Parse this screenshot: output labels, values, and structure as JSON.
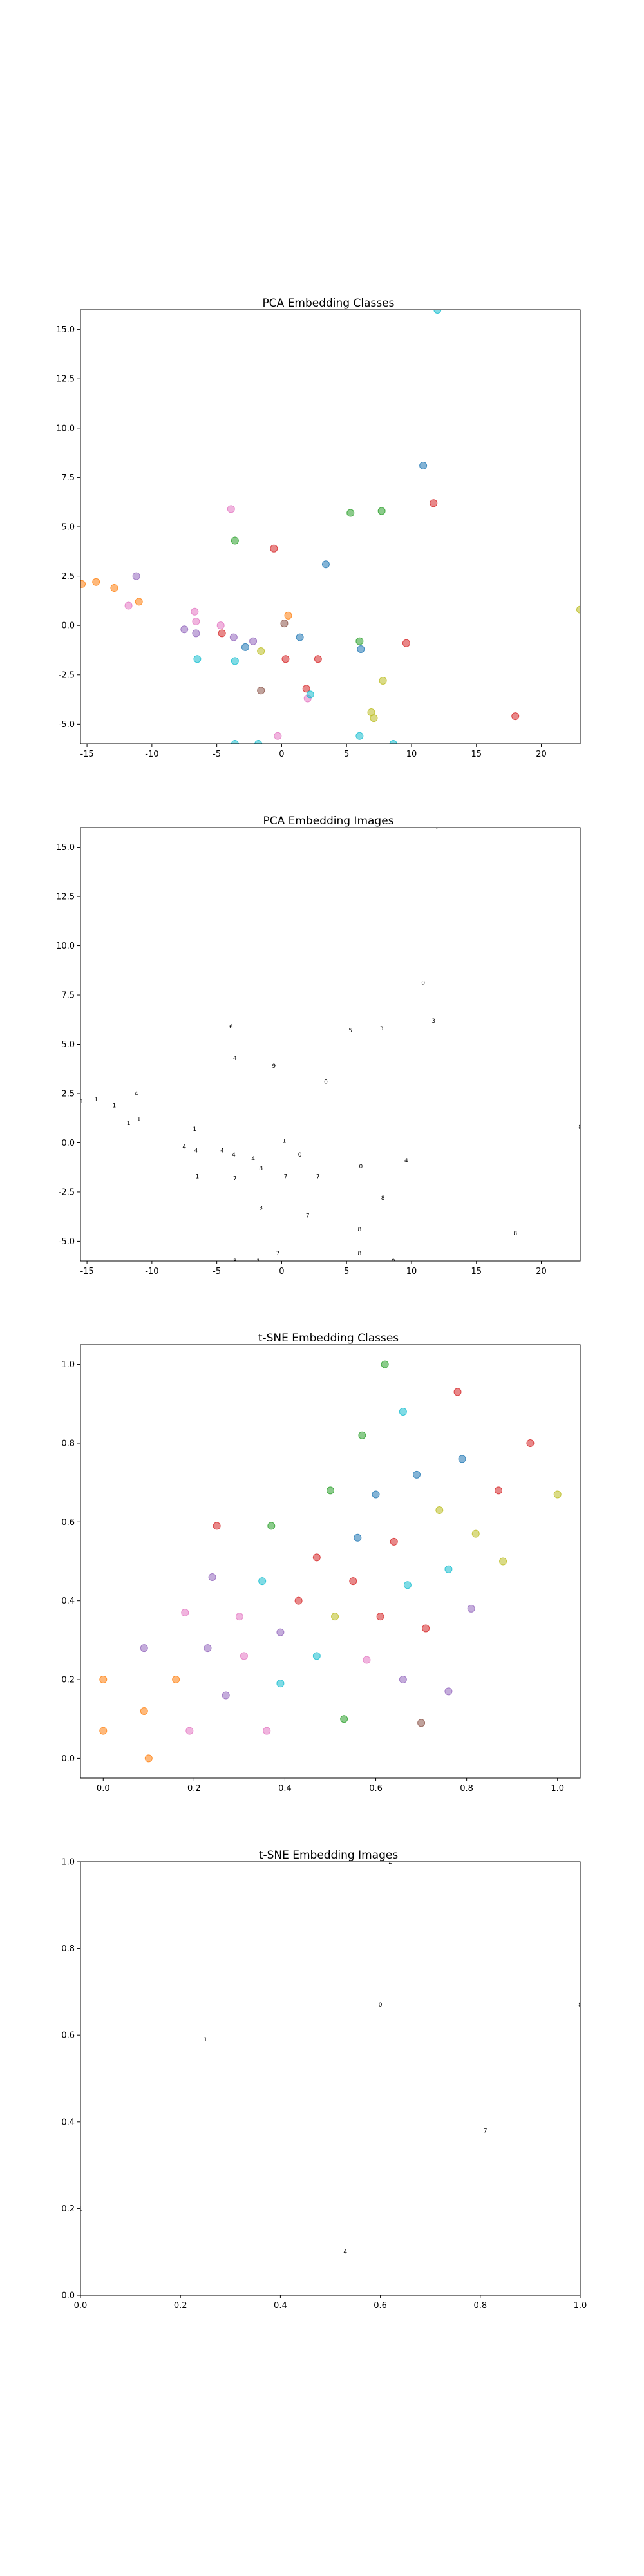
{
  "chart_data": [
    {
      "type": "scatter",
      "title": "PCA Embedding Classes",
      "xlabel": "",
      "ylabel": "",
      "xlim": [
        -15.5,
        23
      ],
      "ylim": [
        -6,
        16
      ],
      "xticks": [
        -15,
        -10,
        -5,
        0,
        5,
        10,
        15,
        20
      ],
      "yticks": [
        -5.0,
        -2.5,
        0.0,
        2.5,
        5.0,
        7.5,
        10.0,
        12.5,
        15.0
      ],
      "grid": false,
      "points": [
        {
          "x": -15.4,
          "y": 2.1,
          "color": "#ff7f0e"
        },
        {
          "x": -14.3,
          "y": 2.2,
          "color": "#ff7f0e"
        },
        {
          "x": -12.9,
          "y": 1.9,
          "color": "#ff7f0e"
        },
        {
          "x": -11.8,
          "y": 1.0,
          "color": "#e377c2"
        },
        {
          "x": -11.2,
          "y": 2.5,
          "color": "#9467bd"
        },
        {
          "x": -11.0,
          "y": 1.2,
          "color": "#ff7f0e"
        },
        {
          "x": -7.5,
          "y": -0.2,
          "color": "#9467bd"
        },
        {
          "x": -6.7,
          "y": 0.7,
          "color": "#e377c2"
        },
        {
          "x": -6.6,
          "y": 0.2,
          "color": "#e377c2"
        },
        {
          "x": -6.6,
          "y": -0.4,
          "color": "#9467bd"
        },
        {
          "x": -6.5,
          "y": -1.7,
          "color": "#17becf"
        },
        {
          "x": -4.7,
          "y": 0.0,
          "color": "#e377c2"
        },
        {
          "x": -4.6,
          "y": -0.4,
          "color": "#d62728"
        },
        {
          "x": -3.9,
          "y": 5.9,
          "color": "#e377c2"
        },
        {
          "x": -3.7,
          "y": -0.6,
          "color": "#9467bd"
        },
        {
          "x": -3.6,
          "y": 4.3,
          "color": "#2ca02c"
        },
        {
          "x": -3.6,
          "y": -1.8,
          "color": "#17becf"
        },
        {
          "x": -2.8,
          "y": -1.1,
          "color": "#1f77b4"
        },
        {
          "x": -2.2,
          "y": -0.8,
          "color": "#9467bd"
        },
        {
          "x": -1.6,
          "y": -3.3,
          "color": "#8c564b"
        },
        {
          "x": -1.6,
          "y": -1.3,
          "color": "#bcbd22"
        },
        {
          "x": -0.6,
          "y": 3.9,
          "color": "#d62728"
        },
        {
          "x": 0.2,
          "y": 0.1,
          "color": "#8c564b"
        },
        {
          "x": 0.3,
          "y": -1.7,
          "color": "#d62728"
        },
        {
          "x": 0.5,
          "y": 0.5,
          "color": "#ff7f0e"
        },
        {
          "x": 1.4,
          "y": -0.6,
          "color": "#1f77b4"
        },
        {
          "x": 1.9,
          "y": -3.2,
          "color": "#d62728"
        },
        {
          "x": 2.0,
          "y": -3.7,
          "color": "#e377c2"
        },
        {
          "x": 2.2,
          "y": -3.5,
          "color": "#17becf"
        },
        {
          "x": 2.8,
          "y": -1.7,
          "color": "#d62728"
        },
        {
          "x": 3.4,
          "y": 3.1,
          "color": "#1f77b4"
        },
        {
          "x": 5.3,
          "y": 5.7,
          "color": "#2ca02c"
        },
        {
          "x": 6.0,
          "y": -0.8,
          "color": "#2ca02c"
        },
        {
          "x": 6.1,
          "y": -1.2,
          "color": "#1f77b4"
        },
        {
          "x": 6.9,
          "y": -4.4,
          "color": "#bcbd22"
        },
        {
          "x": 7.1,
          "y": -4.7,
          "color": "#bcbd22"
        },
        {
          "x": 7.7,
          "y": 5.8,
          "color": "#2ca02c"
        },
        {
          "x": 7.8,
          "y": -2.8,
          "color": "#bcbd22"
        },
        {
          "x": 9.6,
          "y": -0.9,
          "color": "#d62728"
        },
        {
          "x": 10.9,
          "y": 8.1,
          "color": "#1f77b4"
        },
        {
          "x": 11.7,
          "y": 6.2,
          "color": "#d62728"
        },
        {
          "x": 18.0,
          "y": -4.6,
          "color": "#d62728"
        },
        {
          "x": 23.0,
          "y": 0.8,
          "color": "#bcbd22"
        },
        {
          "x": -3.6,
          "y": -6.0,
          "color": "#17becf"
        },
        {
          "x": -1.8,
          "y": -6.0,
          "color": "#17becf"
        },
        {
          "x": -0.3,
          "y": -5.6,
          "color": "#e377c2"
        },
        {
          "x": 6.0,
          "y": -5.6,
          "color": "#17becf"
        },
        {
          "x": 8.6,
          "y": -6.0,
          "color": "#17becf"
        },
        {
          "x": 12.0,
          "y": 16.0,
          "color": "#17becf"
        }
      ]
    },
    {
      "type": "scatter",
      "title": "PCA Embedding Images",
      "xlabel": "",
      "ylabel": "",
      "xlim": [
        -15.5,
        23
      ],
      "ylim": [
        -6,
        16
      ],
      "xticks": [
        -15,
        -10,
        -5,
        0,
        5,
        10,
        15,
        20
      ],
      "yticks": [
        -5.0,
        -2.5,
        0.0,
        2.5,
        5.0,
        7.5,
        10.0,
        12.5,
        15.0
      ],
      "grid": false,
      "points": [
        {
          "x": -15.4,
          "y": 2.1,
          "label": "1"
        },
        {
          "x": -14.3,
          "y": 2.2,
          "label": "1"
        },
        {
          "x": -12.9,
          "y": 1.9,
          "label": "1"
        },
        {
          "x": -11.8,
          "y": 1.0,
          "label": "1"
        },
        {
          "x": -11.2,
          "y": 2.5,
          "label": "4"
        },
        {
          "x": -11.0,
          "y": 1.2,
          "label": "1"
        },
        {
          "x": -7.5,
          "y": -0.2,
          "label": "4"
        },
        {
          "x": -6.7,
          "y": 0.7,
          "label": "1"
        },
        {
          "x": -6.6,
          "y": -0.4,
          "label": "4"
        },
        {
          "x": -6.5,
          "y": -1.7,
          "label": "1"
        },
        {
          "x": -4.6,
          "y": -0.4,
          "label": "4"
        },
        {
          "x": -3.9,
          "y": 5.9,
          "label": "6"
        },
        {
          "x": -3.7,
          "y": -0.6,
          "label": "4"
        },
        {
          "x": -3.6,
          "y": 4.3,
          "label": "4"
        },
        {
          "x": -3.6,
          "y": -1.8,
          "label": "7"
        },
        {
          "x": -2.2,
          "y": -0.8,
          "label": "4"
        },
        {
          "x": -1.6,
          "y": -3.3,
          "label": "3"
        },
        {
          "x": -1.6,
          "y": -1.3,
          "label": "8"
        },
        {
          "x": -0.6,
          "y": 3.9,
          "label": "9"
        },
        {
          "x": 0.2,
          "y": 0.1,
          "label": "1"
        },
        {
          "x": 0.3,
          "y": -1.7,
          "label": "7"
        },
        {
          "x": 1.4,
          "y": -0.6,
          "label": "0"
        },
        {
          "x": 2.0,
          "y": -3.7,
          "label": "7"
        },
        {
          "x": 2.8,
          "y": -1.7,
          "label": "7"
        },
        {
          "x": 3.4,
          "y": 3.1,
          "label": "0"
        },
        {
          "x": 5.3,
          "y": 5.7,
          "label": "5"
        },
        {
          "x": 6.1,
          "y": -1.2,
          "label": "0"
        },
        {
          "x": 6.0,
          "y": -4.4,
          "label": "8"
        },
        {
          "x": 7.7,
          "y": 5.8,
          "label": "3"
        },
        {
          "x": 7.8,
          "y": -2.8,
          "label": "8"
        },
        {
          "x": 9.6,
          "y": -0.9,
          "label": "4"
        },
        {
          "x": 10.9,
          "y": 8.1,
          "label": "0"
        },
        {
          "x": 11.7,
          "y": 6.2,
          "label": "3"
        },
        {
          "x": 18.0,
          "y": -4.6,
          "label": "8"
        },
        {
          "x": 23.0,
          "y": 0.8,
          "label": "8"
        },
        {
          "x": -3.6,
          "y": -6.0,
          "label": "3"
        },
        {
          "x": -1.8,
          "y": -6.0,
          "label": "1"
        },
        {
          "x": -0.3,
          "y": -5.6,
          "label": "7"
        },
        {
          "x": 6.0,
          "y": -5.6,
          "label": "8"
        },
        {
          "x": 8.6,
          "y": -6.0,
          "label": "0"
        },
        {
          "x": 12.0,
          "y": 16.0,
          "label": "2"
        }
      ]
    },
    {
      "type": "scatter",
      "title": "t-SNE Embedding Classes",
      "xlabel": "",
      "ylabel": "",
      "xlim": [
        -0.05,
        1.05
      ],
      "ylim": [
        -0.05,
        1.05
      ],
      "xticks": [
        0.0,
        0.2,
        0.4,
        0.6,
        0.8,
        1.0
      ],
      "yticks": [
        0.0,
        0.2,
        0.4,
        0.6,
        0.8,
        1.0
      ],
      "grid": false,
      "points": [
        {
          "x": 0.0,
          "y": 0.07,
          "color": "#ff7f0e"
        },
        {
          "x": 0.0,
          "y": 0.2,
          "color": "#ff7f0e"
        },
        {
          "x": 0.09,
          "y": 0.12,
          "color": "#ff7f0e"
        },
        {
          "x": 0.1,
          "y": 0.0,
          "color": "#ff7f0e"
        },
        {
          "x": 0.09,
          "y": 0.28,
          "color": "#9467bd"
        },
        {
          "x": 0.16,
          "y": 0.2,
          "color": "#ff7f0e"
        },
        {
          "x": 0.19,
          "y": 0.07,
          "color": "#e377c2"
        },
        {
          "x": 0.18,
          "y": 0.37,
          "color": "#e377c2"
        },
        {
          "x": 0.23,
          "y": 0.28,
          "color": "#9467bd"
        },
        {
          "x": 0.24,
          "y": 0.46,
          "color": "#9467bd"
        },
        {
          "x": 0.25,
          "y": 0.59,
          "color": "#d62728"
        },
        {
          "x": 0.27,
          "y": 0.16,
          "color": "#9467bd"
        },
        {
          "x": 0.3,
          "y": 0.36,
          "color": "#e377c2"
        },
        {
          "x": 0.31,
          "y": 0.26,
          "color": "#e377c2"
        },
        {
          "x": 0.35,
          "y": 0.45,
          "color": "#17becf"
        },
        {
          "x": 0.36,
          "y": 0.07,
          "color": "#e377c2"
        },
        {
          "x": 0.37,
          "y": 0.59,
          "color": "#2ca02c"
        },
        {
          "x": 0.39,
          "y": 0.32,
          "color": "#9467bd"
        },
        {
          "x": 0.39,
          "y": 0.19,
          "color": "#17becf"
        },
        {
          "x": 0.43,
          "y": 0.4,
          "color": "#d62728"
        },
        {
          "x": 0.47,
          "y": 0.51,
          "color": "#d62728"
        },
        {
          "x": 0.47,
          "y": 0.26,
          "color": "#17becf"
        },
        {
          "x": 0.5,
          "y": 0.68,
          "color": "#2ca02c"
        },
        {
          "x": 0.51,
          "y": 0.36,
          "color": "#bcbd22"
        },
        {
          "x": 0.53,
          "y": 0.1,
          "color": "#2ca02c"
        },
        {
          "x": 0.55,
          "y": 0.45,
          "color": "#d62728"
        },
        {
          "x": 0.56,
          "y": 0.56,
          "color": "#1f77b4"
        },
        {
          "x": 0.57,
          "y": 0.82,
          "color": "#2ca02c"
        },
        {
          "x": 0.58,
          "y": 0.25,
          "color": "#e377c2"
        },
        {
          "x": 0.6,
          "y": 0.67,
          "color": "#1f77b4"
        },
        {
          "x": 0.61,
          "y": 0.36,
          "color": "#d62728"
        },
        {
          "x": 0.62,
          "y": 1.0,
          "color": "#2ca02c"
        },
        {
          "x": 0.64,
          "y": 0.55,
          "color": "#d62728"
        },
        {
          "x": 0.66,
          "y": 0.88,
          "color": "#17becf"
        },
        {
          "x": 0.66,
          "y": 0.2,
          "color": "#9467bd"
        },
        {
          "x": 0.67,
          "y": 0.44,
          "color": "#17becf"
        },
        {
          "x": 0.69,
          "y": 0.72,
          "color": "#1f77b4"
        },
        {
          "x": 0.7,
          "y": 0.09,
          "color": "#8c564b"
        },
        {
          "x": 0.71,
          "y": 0.33,
          "color": "#d62728"
        },
        {
          "x": 0.74,
          "y": 0.63,
          "color": "#bcbd22"
        },
        {
          "x": 0.76,
          "y": 0.48,
          "color": "#17becf"
        },
        {
          "x": 0.76,
          "y": 0.17,
          "color": "#9467bd"
        },
        {
          "x": 0.78,
          "y": 0.93,
          "color": "#d62728"
        },
        {
          "x": 0.79,
          "y": 0.76,
          "color": "#1f77b4"
        },
        {
          "x": 0.81,
          "y": 0.38,
          "color": "#9467bd"
        },
        {
          "x": 0.82,
          "y": 0.57,
          "color": "#bcbd22"
        },
        {
          "x": 0.87,
          "y": 0.68,
          "color": "#d62728"
        },
        {
          "x": 0.88,
          "y": 0.5,
          "color": "#bcbd22"
        },
        {
          "x": 0.94,
          "y": 0.8,
          "color": "#d62728"
        },
        {
          "x": 1.0,
          "y": 0.67,
          "color": "#bcbd22"
        }
      ]
    },
    {
      "type": "scatter",
      "title": "t-SNE Embedding Images",
      "xlabel": "",
      "ylabel": "",
      "xlim": [
        0.0,
        1.0
      ],
      "ylim": [
        0.0,
        1.0
      ],
      "xticks": [
        0.0,
        0.2,
        0.4,
        0.6,
        0.8,
        1.0
      ],
      "yticks": [
        0.0,
        0.2,
        0.4,
        0.6,
        0.8,
        1.0
      ],
      "grid": false,
      "points": [
        {
          "x": 0.0,
          "y": 0.2,
          "label": "1"
        },
        {
          "x": 0.25,
          "y": 0.59,
          "label": "1"
        },
        {
          "x": 0.53,
          "y": 0.1,
          "label": "4"
        },
        {
          "x": 0.6,
          "y": 0.67,
          "label": "0"
        },
        {
          "x": 0.62,
          "y": 1.0,
          "label": "2"
        },
        {
          "x": 0.81,
          "y": 0.38,
          "label": "7"
        },
        {
          "x": 1.0,
          "y": 0.67,
          "label": "8"
        }
      ]
    }
  ]
}
